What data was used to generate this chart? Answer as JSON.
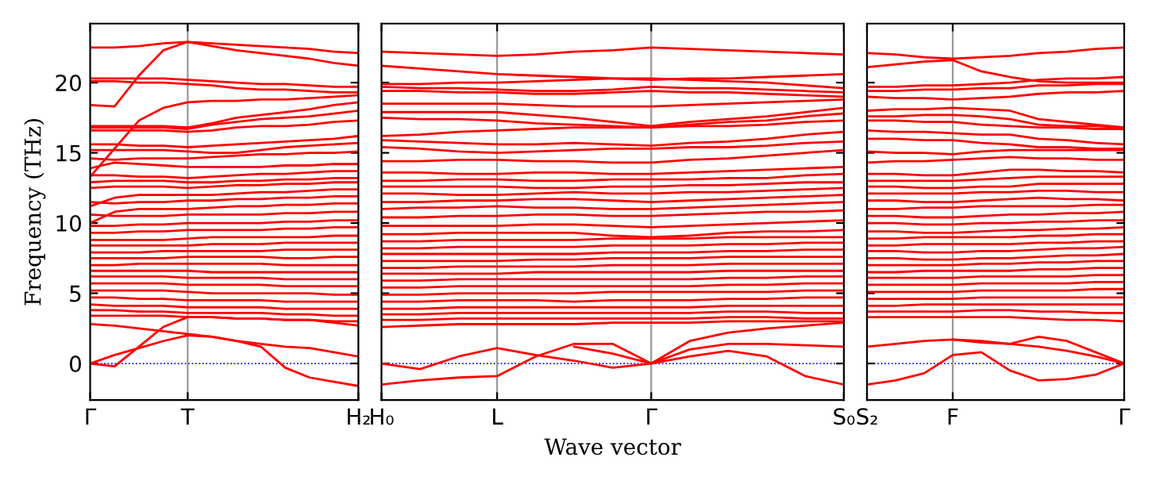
{
  "chart_data": [
    {
      "type": "line",
      "ylabel": "Frequency (THz)",
      "categories": [
        "Γ",
        null,
        null,
        null,
        "T",
        null,
        null,
        null,
        null,
        null,
        null,
        "H₂"
      ],
      "ylim": [
        -2.6,
        24.2
      ],
      "yticks": [
        0,
        5,
        10,
        15,
        20
      ],
      "line_style": "solid",
      "ref_lines": [
        {
          "axis": "y",
          "value": 0,
          "color": "#0000ff",
          "line_style": "dotted"
        },
        {
          "axis": "x",
          "value": "T",
          "color": "#999999",
          "line_style": "solid"
        }
      ],
      "series": [
        {
          "color": "#ff0000",
          "values": [
            22.5,
            22.5,
            22.6,
            22.8,
            22.9,
            22.8,
            22.7,
            22.6,
            22.5,
            22.4,
            22.2,
            22.1
          ]
        },
        {
          "color": "#ff0000",
          "values": [
            18.4,
            18.3,
            20.5,
            22.3,
            22.9,
            22.6,
            22.3,
            22.1,
            21.9,
            21.7,
            21.4,
            21.2
          ]
        },
        {
          "color": "#ff0000",
          "values": [
            20.3,
            20.3,
            20.3,
            20.3,
            20.2,
            20.1,
            20.0,
            19.9,
            19.9,
            19.8,
            19.7,
            19.7
          ]
        },
        {
          "color": "#ff0000",
          "values": [
            20.1,
            20.1,
            20.0,
            20.0,
            19.9,
            19.8,
            19.6,
            19.5,
            19.5,
            19.4,
            19.3,
            19.3
          ]
        },
        {
          "color": "#ff0000",
          "values": [
            13.3,
            15.3,
            17.3,
            18.2,
            18.6,
            18.7,
            18.7,
            18.8,
            18.8,
            18.9,
            19.0,
            19.1
          ]
        },
        {
          "color": "#ff0000",
          "values": [
            16.9,
            16.9,
            16.9,
            16.9,
            16.8,
            17.1,
            17.5,
            17.7,
            17.9,
            18.1,
            18.4,
            18.6
          ]
        },
        {
          "color": "#ff0000",
          "values": [
            16.8,
            16.8,
            16.8,
            16.8,
            16.7,
            17.0,
            17.2,
            17.4,
            17.5,
            17.6,
            17.8,
            18.0
          ]
        },
        {
          "color": "#ff0000",
          "values": [
            16.6,
            16.6,
            16.6,
            16.6,
            16.5,
            16.6,
            16.8,
            16.9,
            16.9,
            17.0,
            17.2,
            17.3
          ]
        },
        {
          "color": "#ff0000",
          "values": [
            15.6,
            15.6,
            15.5,
            15.5,
            15.4,
            15.5,
            15.6,
            15.7,
            15.8,
            15.9,
            16.0,
            16.2
          ]
        },
        {
          "color": "#ff0000",
          "values": [
            15.2,
            15.2,
            15.2,
            15.2,
            15.1,
            15.0,
            15.0,
            15.2,
            15.4,
            15.5,
            15.6,
            15.7
          ]
        },
        {
          "color": "#ff0000",
          "values": [
            14.6,
            14.5,
            14.6,
            14.6,
            14.6,
            14.7,
            14.8,
            14.9,
            14.9,
            15.0,
            15.0,
            15.1
          ]
        },
        {
          "color": "#ff0000",
          "values": [
            13.9,
            14.3,
            14.2,
            14.1,
            14.0,
            14.0,
            14.0,
            14.0,
            14.1,
            14.1,
            14.2,
            14.2
          ]
        },
        {
          "color": "#ff0000",
          "values": [
            13.4,
            13.4,
            13.3,
            13.3,
            13.2,
            13.3,
            13.4,
            13.5,
            13.5,
            13.6,
            13.7,
            13.7
          ]
        },
        {
          "color": "#ff0000",
          "values": [
            12.9,
            13.0,
            13.0,
            13.0,
            12.9,
            12.9,
            13.0,
            13.0,
            13.1,
            13.1,
            13.2,
            13.2
          ]
        },
        {
          "color": "#ff0000",
          "values": [
            12.5,
            12.6,
            12.6,
            12.6,
            12.5,
            12.6,
            12.7,
            12.7,
            12.8,
            12.8,
            12.9,
            12.9
          ]
        },
        {
          "color": "#ff0000",
          "values": [
            11.2,
            11.8,
            12.0,
            12.0,
            12.0,
            12.0,
            12.1,
            12.2,
            12.2,
            12.3,
            12.4,
            12.4
          ]
        },
        {
          "color": "#ff0000",
          "values": [
            11.5,
            11.4,
            11.5,
            11.5,
            11.6,
            11.6,
            11.7,
            11.7,
            11.8,
            11.8,
            11.9,
            11.9
          ]
        },
        {
          "color": "#ff0000",
          "values": [
            10.0,
            10.8,
            11.0,
            11.0,
            11.0,
            11.1,
            11.2,
            11.2,
            11.3,
            11.3,
            11.4,
            11.4
          ]
        },
        {
          "color": "#ff0000",
          "values": [
            10.6,
            10.5,
            10.5,
            10.5,
            10.6,
            10.6,
            10.6,
            10.6,
            10.7,
            10.7,
            10.8,
            10.8
          ]
        },
        {
          "color": "#ff0000",
          "values": [
            9.8,
            9.8,
            9.9,
            9.9,
            10.0,
            10.0,
            10.0,
            10.0,
            10.1,
            10.1,
            10.2,
            10.2
          ]
        },
        {
          "color": "#ff0000",
          "values": [
            9.3,
            9.3,
            9.4,
            9.4,
            9.5,
            9.5,
            9.5,
            9.5,
            9.6,
            9.6,
            9.7,
            9.7
          ]
        },
        {
          "color": "#ff0000",
          "values": [
            8.8,
            8.8,
            8.8,
            8.8,
            8.9,
            9.0,
            9.0,
            9.0,
            9.0,
            9.0,
            9.1,
            9.1
          ]
        },
        {
          "color": "#ff0000",
          "values": [
            8.4,
            8.4,
            8.4,
            8.4,
            8.4,
            8.5,
            8.5,
            8.5,
            8.6,
            8.6,
            8.6,
            8.6
          ]
        },
        {
          "color": "#ff0000",
          "values": [
            7.9,
            7.9,
            7.9,
            8.0,
            8.0,
            8.0,
            8.0,
            8.0,
            8.1,
            8.1,
            8.1,
            8.1
          ]
        },
        {
          "color": "#ff0000",
          "values": [
            7.5,
            7.5,
            7.5,
            7.5,
            7.6,
            7.6,
            7.6,
            7.6,
            7.5,
            7.5,
            7.6,
            7.6
          ]
        },
        {
          "color": "#ff0000",
          "values": [
            7.0,
            7.0,
            7.1,
            7.1,
            7.1,
            7.1,
            7.1,
            7.1,
            7.0,
            7.0,
            7.0,
            7.0
          ]
        },
        {
          "color": "#ff0000",
          "values": [
            6.6,
            6.6,
            6.6,
            6.6,
            6.6,
            6.5,
            6.5,
            6.5,
            6.5,
            6.5,
            6.5,
            6.5
          ]
        },
        {
          "color": "#ff0000",
          "values": [
            6.2,
            6.2,
            6.2,
            6.2,
            6.1,
            6.1,
            6.1,
            6.1,
            6.0,
            6.0,
            6.0,
            6.0
          ]
        },
        {
          "color": "#ff0000",
          "values": [
            5.7,
            5.7,
            5.7,
            5.7,
            5.6,
            5.6,
            5.6,
            5.6,
            5.5,
            5.5,
            5.5,
            5.5
          ]
        },
        {
          "color": "#ff0000",
          "values": [
            5.2,
            5.2,
            5.2,
            5.2,
            5.1,
            5.0,
            5.0,
            5.0,
            5.0,
            5.0,
            4.9,
            4.9
          ]
        },
        {
          "color": "#ff0000",
          "values": [
            4.7,
            4.7,
            4.6,
            4.6,
            4.5,
            4.5,
            4.5,
            4.5,
            4.4,
            4.4,
            4.4,
            4.4
          ]
        },
        {
          "color": "#ff0000",
          "values": [
            4.2,
            4.1,
            4.1,
            4.1,
            4.0,
            4.0,
            4.0,
            4.0,
            3.9,
            3.9,
            3.9,
            3.9
          ]
        },
        {
          "color": "#ff0000",
          "values": [
            3.8,
            3.8,
            3.7,
            3.7,
            3.6,
            3.6,
            3.6,
            3.6,
            3.5,
            3.5,
            3.4,
            3.4
          ]
        },
        {
          "color": "#ff0000",
          "values": [
            3.4,
            3.4,
            3.4,
            3.4,
            3.3,
            3.3,
            3.2,
            3.2,
            3.1,
            3.1,
            3.0,
            3.0
          ]
        },
        {
          "color": "#ff0000",
          "values": [
            2.8,
            2.7,
            2.5,
            2.3,
            2.1,
            1.9,
            1.6,
            1.4,
            1.2,
            1.1,
            0.8,
            0.5
          ]
        },
        {
          "color": "#ff0000",
          "values": [
            0,
            -0.2,
            1.2,
            2.6,
            3.3,
            3.3,
            3.2,
            3.2,
            3.1,
            3.1,
            2.9,
            2.7
          ]
        },
        {
          "color": "#ff0000",
          "values": [
            0,
            0.6,
            1.1,
            1.6,
            2.0,
            1.9,
            1.6,
            1.2,
            -0.3,
            -1.0,
            -1.3,
            -1.6
          ]
        }
      ]
    },
    {
      "type": "line",
      "xlabel": "Wave vector",
      "categories": [
        "H₀",
        null,
        null,
        "L",
        null,
        null,
        null,
        "Γ",
        null,
        null,
        null,
        null,
        "S₀"
      ],
      "ylim": [
        -2.6,
        24.2
      ],
      "yticks": [
        0,
        5,
        10,
        15,
        20
      ],
      "tick_labels": "x",
      "line_style": "solid",
      "ref_lines": [
        {
          "axis": "y",
          "value": 0,
          "color": "#0000ff",
          "line_style": "dotted"
        },
        {
          "axis": "x",
          "value": "L",
          "color": "#999999",
          "line_style": "solid"
        },
        {
          "axis": "x",
          "value": "Γ",
          "color": "#999999",
          "line_style": "solid"
        }
      ],
      "series": [
        {
          "color": "#ff0000",
          "values": [
            22.2,
            22.1,
            22.0,
            21.9,
            22.0,
            22.2,
            22.3,
            22.5,
            22.4,
            22.3,
            22.2,
            22.1,
            22.0
          ]
        },
        {
          "color": "#ff0000",
          "values": [
            21.2,
            21.0,
            20.8,
            20.6,
            20.5,
            20.4,
            20.3,
            20.2,
            20.3,
            20.3,
            20.4,
            20.5,
            20.6
          ]
        },
        {
          "color": "#ff0000",
          "values": [
            19.9,
            19.9,
            20.0,
            20.0,
            20.1,
            20.2,
            20.3,
            20.3,
            20.2,
            20.1,
            20.0,
            19.8,
            19.6
          ]
        },
        {
          "color": "#ff0000",
          "values": [
            19.7,
            19.6,
            19.6,
            19.5,
            19.4,
            19.4,
            19.5,
            19.7,
            19.6,
            19.6,
            19.5,
            19.4,
            19.3
          ]
        },
        {
          "color": "#ff0000",
          "values": [
            19.4,
            19.4,
            19.3,
            19.3,
            19.2,
            19.2,
            19.3,
            19.4,
            19.3,
            19.3,
            19.2,
            19.1,
            19.0
          ]
        },
        {
          "color": "#ff0000",
          "values": [
            18.5,
            18.5,
            18.5,
            18.5,
            18.4,
            18.3,
            18.3,
            18.3,
            18.4,
            18.5,
            18.6,
            18.7,
            18.8
          ]
        },
        {
          "color": "#ff0000",
          "values": [
            17.9,
            17.9,
            17.9,
            17.9,
            17.7,
            17.5,
            17.2,
            16.9,
            17.2,
            17.4,
            17.6,
            17.9,
            18.2
          ]
        },
        {
          "color": "#ff0000",
          "values": [
            17.5,
            17.4,
            17.4,
            17.3,
            17.1,
            17.0,
            16.9,
            16.8,
            17.0,
            17.2,
            17.3,
            17.6,
            17.8
          ]
        },
        {
          "color": "#ff0000",
          "values": [
            16.2,
            16.3,
            16.5,
            16.6,
            16.7,
            16.8,
            16.8,
            16.8,
            16.9,
            16.9,
            17.0,
            17.2,
            17.3
          ]
        },
        {
          "color": "#ff0000",
          "values": [
            15.9,
            15.8,
            15.7,
            15.6,
            15.6,
            15.7,
            15.6,
            15.5,
            15.7,
            15.8,
            16.0,
            16.3,
            16.5
          ]
        },
        {
          "color": "#ff0000",
          "values": [
            15.4,
            15.3,
            15.1,
            15.0,
            15.1,
            15.2,
            15.3,
            15.3,
            15.4,
            15.4,
            15.5,
            15.7,
            15.8
          ]
        },
        {
          "color": "#ff0000",
          "values": [
            14.4,
            14.4,
            14.5,
            14.5,
            14.4,
            14.4,
            14.3,
            14.3,
            14.5,
            14.6,
            14.8,
            15.0,
            15.2
          ]
        },
        {
          "color": "#ff0000",
          "values": [
            13.6,
            13.6,
            13.5,
            13.5,
            13.6,
            13.6,
            13.5,
            13.5,
            13.6,
            13.7,
            13.8,
            13.9,
            14.0
          ]
        },
        {
          "color": "#ff0000",
          "values": [
            13.0,
            13.0,
            13.1,
            13.1,
            13.0,
            13.0,
            13.1,
            13.1,
            13.1,
            13.2,
            13.2,
            13.4,
            13.5
          ]
        },
        {
          "color": "#ff0000",
          "values": [
            12.6,
            12.6,
            12.6,
            12.6,
            12.5,
            12.5,
            12.6,
            12.6,
            12.7,
            12.7,
            12.8,
            12.9,
            12.9
          ]
        },
        {
          "color": "#ff0000",
          "values": [
            12.1,
            12.1,
            12.0,
            12.0,
            12.1,
            12.2,
            12.1,
            12.1,
            12.2,
            12.2,
            12.3,
            12.4,
            12.5
          ]
        },
        {
          "color": "#ff0000",
          "values": [
            11.5,
            11.5,
            11.6,
            11.6,
            11.7,
            11.7,
            11.6,
            11.5,
            11.6,
            11.7,
            11.8,
            11.9,
            12.0
          ]
        },
        {
          "color": "#ff0000",
          "values": [
            11.0,
            11.1,
            11.1,
            11.2,
            11.1,
            11.1,
            11.0,
            11.0,
            11.1,
            11.2,
            11.3,
            11.4,
            11.5
          ]
        },
        {
          "color": "#ff0000",
          "values": [
            10.4,
            10.4,
            10.5,
            10.5,
            10.6,
            10.6,
            10.5,
            10.5,
            10.6,
            10.7,
            10.8,
            10.8,
            10.9
          ]
        },
        {
          "color": "#ff0000",
          "values": [
            9.8,
            9.8,
            9.8,
            9.8,
            9.9,
            9.9,
            9.8,
            9.7,
            9.8,
            9.9,
            10.0,
            10.1,
            10.2
          ]
        },
        {
          "color": "#ff0000",
          "values": [
            9.2,
            9.2,
            9.3,
            9.3,
            9.3,
            9.3,
            9.1,
            9.0,
            9.1,
            9.3,
            9.4,
            9.4,
            9.5
          ]
        },
        {
          "color": "#ff0000",
          "values": [
            8.7,
            8.7,
            8.8,
            8.8,
            8.8,
            8.8,
            8.9,
            8.9,
            8.9,
            9.0,
            9.0,
            9.0,
            9.0
          ]
        },
        {
          "color": "#ff0000",
          "values": [
            8.2,
            8.2,
            8.3,
            8.3,
            8.3,
            8.3,
            8.4,
            8.4,
            8.4,
            8.5,
            8.5,
            8.6,
            8.6
          ]
        },
        {
          "color": "#ff0000",
          "values": [
            7.8,
            7.8,
            7.8,
            7.8,
            7.8,
            7.8,
            7.9,
            7.9,
            7.9,
            8.0,
            8.0,
            8.1,
            8.1
          ]
        },
        {
          "color": "#ff0000",
          "values": [
            7.3,
            7.3,
            7.3,
            7.3,
            7.4,
            7.4,
            7.5,
            7.5,
            7.5,
            7.6,
            7.6,
            7.6,
            7.6
          ]
        },
        {
          "color": "#ff0000",
          "values": [
            6.8,
            6.8,
            6.9,
            6.9,
            6.9,
            6.9,
            7.0,
            7.0,
            7.0,
            7.1,
            7.1,
            7.1,
            7.1
          ]
        },
        {
          "color": "#ff0000",
          "values": [
            6.4,
            6.4,
            6.4,
            6.4,
            6.5,
            6.5,
            6.5,
            6.5,
            6.5,
            6.6,
            6.6,
            6.6,
            6.6
          ]
        },
        {
          "color": "#ff0000",
          "values": [
            5.9,
            5.9,
            6.0,
            6.0,
            6.0,
            6.0,
            6.0,
            6.0,
            6.0,
            6.1,
            6.1,
            6.2,
            6.2
          ]
        },
        {
          "color": "#ff0000",
          "values": [
            5.4,
            5.4,
            5.5,
            5.5,
            5.5,
            5.5,
            5.5,
            5.5,
            5.5,
            5.6,
            5.6,
            5.7,
            5.7
          ]
        },
        {
          "color": "#ff0000",
          "values": [
            4.9,
            4.9,
            5.0,
            5.0,
            5.0,
            5.0,
            5.1,
            5.1,
            5.1,
            5.1,
            5.1,
            5.2,
            5.2
          ]
        },
        {
          "color": "#ff0000",
          "values": [
            4.4,
            4.4,
            4.5,
            4.5,
            4.5,
            4.4,
            4.5,
            4.5,
            4.5,
            4.6,
            4.6,
            4.7,
            4.7
          ]
        },
        {
          "color": "#ff0000",
          "values": [
            3.9,
            3.9,
            4.0,
            4.0,
            4.0,
            4.0,
            4.0,
            4.0,
            4.0,
            4.1,
            4.1,
            4.1,
            4.1
          ]
        },
        {
          "color": "#ff0000",
          "values": [
            3.5,
            3.5,
            3.6,
            3.6,
            3.6,
            3.6,
            3.6,
            3.6,
            3.6,
            3.7,
            3.7,
            3.6,
            3.6
          ]
        },
        {
          "color": "#ff0000",
          "values": [
            3.1,
            3.1,
            3.2,
            3.2,
            3.2,
            3.2,
            3.2,
            3.2,
            3.2,
            3.3,
            3.3,
            3.2,
            3.2
          ]
        },
        {
          "color": "#ff0000",
          "values": [
            2.6,
            2.7,
            2.8,
            2.8,
            2.8,
            2.8,
            2.9,
            2.9,
            2.9,
            3.0,
            3.0,
            3.0,
            3.0
          ]
        },
        {
          "color": "#ff0000",
          "values": [
            0,
            -0.4,
            0.5,
            1.1,
            0.6,
            0.2,
            -0.3,
            0,
            0.5,
            0.9,
            0.5,
            -0.9,
            -1.5
          ]
        },
        {
          "color": "#ff0000",
          "values": [
            -1.5,
            -1.2,
            -1.0,
            -0.9,
            0.5,
            1.4,
            1.4,
            0,
            1.0,
            1.4,
            1.4,
            1.3,
            1.2
          ]
        },
        {
          "color": "#ff0000",
          "values": [
            null,
            null,
            null,
            null,
            null,
            1.2,
            0.7,
            0,
            1.6,
            2.2,
            2.5,
            2.7,
            2.9
          ]
        }
      ]
    },
    {
      "type": "line",
      "categories": [
        "S₂",
        null,
        null,
        "F",
        null,
        null,
        null,
        null,
        null,
        "Γ"
      ],
      "ylim": [
        -2.6,
        24.2
      ],
      "yticks": [
        0,
        5,
        10,
        15,
        20
      ],
      "tick_labels": "x",
      "line_style": "solid",
      "ref_lines": [
        {
          "axis": "y",
          "value": 0,
          "color": "#0000ff",
          "line_style": "dotted"
        },
        {
          "axis": "x",
          "value": "F",
          "color": "#999999",
          "line_style": "solid"
        }
      ],
      "series": [
        {
          "color": "#ff0000",
          "values": [
            22.1,
            22.0,
            21.8,
            21.7,
            21.8,
            21.9,
            22.1,
            22.2,
            22.4,
            22.5
          ]
        },
        {
          "color": "#ff0000",
          "values": [
            21.1,
            21.3,
            21.5,
            21.6,
            20.8,
            20.4,
            20.1,
            20.0,
            20.0,
            20.0
          ]
        },
        {
          "color": "#ff0000",
          "values": [
            19.7,
            19.7,
            19.8,
            19.8,
            19.9,
            20.0,
            20.2,
            20.3,
            20.3,
            20.4
          ]
        },
        {
          "color": "#ff0000",
          "values": [
            19.4,
            19.4,
            19.5,
            19.5,
            19.6,
            19.6,
            19.8,
            19.8,
            19.9,
            19.9
          ]
        },
        {
          "color": "#ff0000",
          "values": [
            19.0,
            18.9,
            18.9,
            18.8,
            18.9,
            19.0,
            19.2,
            19.3,
            19.3,
            19.4
          ]
        },
        {
          "color": "#ff0000",
          "values": [
            18.0,
            18.1,
            18.1,
            18.2,
            18.1,
            18.0,
            17.4,
            17.2,
            17.0,
            16.8
          ]
        },
        {
          "color": "#ff0000",
          "values": [
            17.6,
            17.6,
            17.7,
            17.7,
            17.6,
            17.4,
            17.0,
            16.9,
            16.9,
            16.8
          ]
        },
        {
          "color": "#ff0000",
          "values": [
            17.3,
            17.3,
            17.2,
            17.2,
            17.0,
            16.9,
            16.8,
            16.8,
            16.7,
            16.7
          ]
        },
        {
          "color": "#ff0000",
          "values": [
            16.6,
            16.5,
            16.5,
            16.4,
            16.3,
            16.3,
            16.0,
            15.9,
            15.7,
            15.6
          ]
        },
        {
          "color": "#ff0000",
          "values": [
            16.0,
            16.0,
            15.9,
            15.9,
            15.7,
            15.6,
            15.4,
            15.4,
            15.3,
            15.3
          ]
        },
        {
          "color": "#ff0000",
          "values": [
            15.1,
            15.0,
            15.0,
            14.9,
            15.1,
            15.2,
            15.2,
            15.2,
            15.2,
            15.2
          ]
        },
        {
          "color": "#ff0000",
          "values": [
            14.3,
            14.4,
            14.4,
            14.5,
            14.6,
            14.7,
            14.6,
            14.6,
            14.5,
            14.5
          ]
        },
        {
          "color": "#ff0000",
          "values": [
            13.5,
            13.5,
            13.4,
            13.4,
            13.6,
            13.8,
            13.8,
            13.7,
            13.7,
            13.6
          ]
        },
        {
          "color": "#ff0000",
          "values": [
            13.0,
            13.0,
            13.0,
            13.0,
            13.1,
            13.2,
            13.3,
            13.3,
            13.3,
            13.3
          ]
        },
        {
          "color": "#ff0000",
          "values": [
            12.6,
            12.6,
            12.5,
            12.5,
            12.6,
            12.6,
            12.8,
            12.8,
            12.8,
            12.8
          ]
        },
        {
          "color": "#ff0000",
          "values": [
            12.1,
            12.1,
            12.1,
            12.1,
            12.2,
            12.2,
            12.3,
            12.3,
            12.2,
            12.2
          ]
        },
        {
          "color": "#ff0000",
          "values": [
            11.6,
            11.6,
            11.5,
            11.5,
            11.6,
            11.7,
            11.8,
            11.7,
            11.7,
            11.6
          ]
        },
        {
          "color": "#ff0000",
          "values": [
            11.0,
            11.0,
            11.1,
            11.1,
            11.2,
            11.2,
            11.2,
            11.2,
            11.3,
            11.3
          ]
        },
        {
          "color": "#ff0000",
          "values": [
            10.5,
            10.5,
            10.4,
            10.4,
            10.5,
            10.6,
            10.6,
            10.7,
            10.7,
            10.8
          ]
        },
        {
          "color": "#ff0000",
          "values": [
            10.0,
            10.0,
            9.9,
            9.9,
            10.0,
            10.0,
            10.1,
            10.1,
            10.2,
            10.2
          ]
        },
        {
          "color": "#ff0000",
          "values": [
            9.4,
            9.4,
            9.3,
            9.3,
            9.4,
            9.5,
            9.5,
            9.6,
            9.6,
            9.7
          ]
        },
        {
          "color": "#ff0000",
          "values": [
            8.9,
            8.9,
            9.0,
            9.0,
            9.0,
            9.0,
            9.1,
            9.1,
            9.2,
            9.2
          ]
        },
        {
          "color": "#ff0000",
          "values": [
            8.4,
            8.4,
            8.5,
            8.5,
            8.5,
            8.5,
            8.6,
            8.6,
            8.7,
            8.7
          ]
        },
        {
          "color": "#ff0000",
          "values": [
            8.0,
            8.0,
            7.9,
            7.9,
            8.0,
            8.0,
            8.1,
            8.2,
            8.2,
            8.3
          ]
        },
        {
          "color": "#ff0000",
          "values": [
            7.5,
            7.5,
            7.4,
            7.4,
            7.5,
            7.5,
            7.6,
            7.7,
            7.7,
            7.8
          ]
        },
        {
          "color": "#ff0000",
          "values": [
            7.0,
            7.0,
            7.0,
            7.0,
            7.1,
            7.1,
            7.2,
            7.2,
            7.3,
            7.3
          ]
        },
        {
          "color": "#ff0000",
          "values": [
            6.5,
            6.5,
            6.6,
            6.6,
            6.6,
            6.6,
            6.7,
            6.7,
            6.8,
            6.8
          ]
        },
        {
          "color": "#ff0000",
          "values": [
            6.1,
            6.1,
            6.1,
            6.1,
            6.2,
            6.2,
            6.2,
            6.2,
            6.3,
            6.3
          ]
        },
        {
          "color": "#ff0000",
          "values": [
            5.6,
            5.6,
            5.6,
            5.6,
            5.7,
            5.7,
            5.7,
            5.7,
            5.8,
            5.8
          ]
        },
        {
          "color": "#ff0000",
          "values": [
            5.1,
            5.1,
            5.1,
            5.1,
            5.2,
            5.2,
            5.2,
            5.2,
            5.3,
            5.3
          ]
        },
        {
          "color": "#ff0000",
          "values": [
            4.6,
            4.6,
            4.6,
            4.6,
            4.7,
            4.7,
            4.7,
            4.7,
            4.7,
            4.7
          ]
        },
        {
          "color": "#ff0000",
          "values": [
            4.1,
            4.1,
            4.2,
            4.2,
            4.2,
            4.2,
            4.2,
            4.2,
            4.2,
            4.2
          ]
        },
        {
          "color": "#ff0000",
          "values": [
            3.7,
            3.7,
            3.7,
            3.7,
            3.8,
            3.8,
            3.7,
            3.7,
            3.6,
            3.6
          ]
        },
        {
          "color": "#ff0000",
          "values": [
            3.3,
            3.3,
            3.3,
            3.3,
            3.3,
            3.3,
            3.2,
            3.1,
            3.1,
            3.0
          ]
        },
        {
          "color": "#ff0000",
          "values": [
            1.2,
            1.4,
            1.6,
            1.7,
            1.5,
            1.4,
            1.9,
            1.6,
            0.8,
            0
          ]
        },
        {
          "color": "#ff0000",
          "values": [
            null,
            null,
            null,
            1.7,
            1.6,
            1.4,
            1.2,
            0.9,
            0.5,
            0
          ]
        },
        {
          "color": "#ff0000",
          "values": [
            -1.5,
            -1.2,
            -0.7,
            0.6,
            0.8,
            -0.5,
            -1.2,
            -1.1,
            -0.8,
            0
          ]
        }
      ]
    }
  ]
}
